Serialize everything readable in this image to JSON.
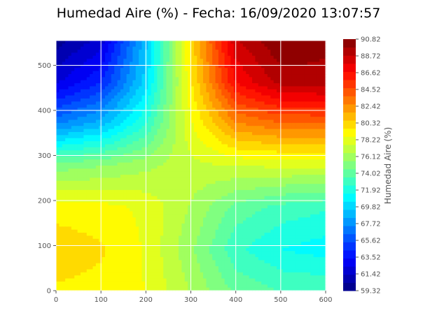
{
  "chart_data": {
    "type": "heatmap",
    "subtype": "filled-contour",
    "title": "Humedad Aire (%) - Fecha: 16/09/2020 13:07:57",
    "xlabel": "",
    "ylabel": "",
    "colormap": "jet",
    "grid": true,
    "xlim": [
      0,
      600
    ],
    "ylim": [
      0,
      555
    ],
    "x_ticks": [
      0,
      100,
      200,
      300,
      400,
      500,
      600
    ],
    "y_ticks": [
      0,
      100,
      200,
      300,
      400,
      500
    ],
    "x": [
      0,
      100,
      200,
      300,
      400,
      500,
      600
    ],
    "y": [
      0,
      92.5,
      185,
      277.5,
      370,
      462.5,
      555
    ],
    "z": [
      [
        79.5,
        79.3,
        78.6,
        76.5,
        74.3,
        73.5,
        73.4
      ],
      [
        80.3,
        79.8,
        78.5,
        75.8,
        72.8,
        71.5,
        71.0
      ],
      [
        79.2,
        79.0,
        78.4,
        76.5,
        74.2,
        73.2,
        72.7
      ],
      [
        75.0,
        75.5,
        76.3,
        77.3,
        77.7,
        77.8,
        77.8
      ],
      [
        67.3,
        69.0,
        72.5,
        78.5,
        82.5,
        83.5,
        83.5
      ],
      [
        62.2,
        64.3,
        70.0,
        79.5,
        86.8,
        89.2,
        89.5
      ],
      [
        59.8,
        61.8,
        69.2,
        80.0,
        88.6,
        90.8,
        90.0
      ]
    ],
    "colorbar": {
      "label": "Humedad Aire (%)",
      "min": 59.32,
      "max": 90.82,
      "levels": 31,
      "ticks": [
        "59.32",
        "61.42",
        "63.52",
        "65.62",
        "67.72",
        "69.82",
        "71.92",
        "74.02",
        "76.12",
        "78.22",
        "80.32",
        "82.42",
        "84.52",
        "86.62",
        "88.72",
        "90.82"
      ]
    }
  }
}
